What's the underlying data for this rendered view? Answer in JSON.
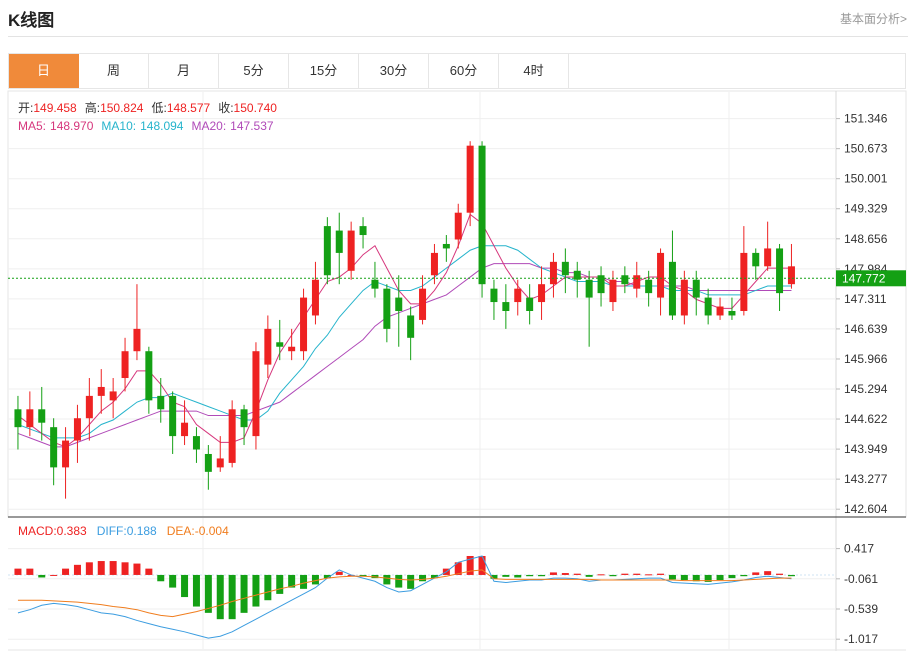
{
  "header": {
    "title": "K线图",
    "fundamental_link": "基本面分析>"
  },
  "tabs": [
    {
      "label": "日",
      "active": true
    },
    {
      "label": "周",
      "active": false
    },
    {
      "label": "月",
      "active": false
    },
    {
      "label": "5分",
      "active": false
    },
    {
      "label": "15分",
      "active": false
    },
    {
      "label": "30分",
      "active": false
    },
    {
      "label": "60分",
      "active": false
    },
    {
      "label": "4时",
      "active": false
    }
  ],
  "colors": {
    "up": "#ee2222",
    "down": "#14a014",
    "ma5": "#d6377d",
    "ma10": "#26b4cc",
    "ma20": "#b04ab8",
    "diff": "#3c9de0",
    "dea": "#f07d1e",
    "accent": "#f08a3a",
    "last_price": "#14a014"
  },
  "chart_data": [
    {
      "type": "candlestick",
      "ohlc_info": {
        "open_label": "开:",
        "open": "149.458",
        "high_label": "高:",
        "high": "150.824",
        "low_label": "低:",
        "low": "148.577",
        "close_label": "收:",
        "close": "150.740"
      },
      "ma_info": {
        "ma5_label": "MA5:",
        "ma5": "148.970",
        "ma10_label": "MA10:",
        "ma10": "148.094",
        "ma20_label": "MA20:",
        "ma20": "147.537"
      },
      "y_ticks": [
        "151.346",
        "150.673",
        "150.001",
        "149.329",
        "148.656",
        "147.984",
        "147.311",
        "146.639",
        "145.966",
        "145.294",
        "144.622",
        "143.949",
        "143.277",
        "142.604"
      ],
      "ylim": [
        142.604,
        151.346
      ],
      "last_price": "147.772",
      "candles": [
        [
          144.84,
          144.44,
          145.14,
          143.94
        ],
        [
          144.44,
          144.84,
          145.24,
          144.24
        ],
        [
          144.84,
          144.54,
          145.34,
          144.14
        ],
        [
          144.44,
          143.54,
          144.64,
          143.14
        ],
        [
          143.54,
          144.14,
          144.44,
          142.84
        ],
        [
          144.14,
          144.64,
          144.94,
          143.64
        ],
        [
          144.64,
          145.14,
          145.54,
          144.14
        ],
        [
          145.14,
          145.34,
          145.74,
          144.74
        ],
        [
          145.04,
          145.24,
          145.54,
          144.64
        ],
        [
          145.54,
          146.14,
          146.44,
          145.24
        ],
        [
          146.14,
          146.64,
          147.64,
          145.94
        ],
        [
          146.14,
          145.04,
          146.24,
          144.74
        ],
        [
          145.14,
          144.84,
          145.54,
          144.54
        ],
        [
          145.14,
          144.24,
          145.24,
          143.84
        ],
        [
          144.24,
          144.54,
          145.04,
          144.04
        ],
        [
          144.24,
          143.94,
          144.44,
          143.64
        ],
        [
          143.84,
          143.44,
          144.04,
          143.04
        ],
        [
          143.54,
          143.74,
          144.24,
          143.44
        ],
        [
          143.64,
          144.84,
          145.04,
          143.54
        ],
        [
          144.84,
          144.44,
          144.94,
          144.04
        ],
        [
          144.24,
          146.14,
          146.34,
          143.94
        ],
        [
          145.84,
          146.64,
          146.94,
          145.54
        ],
        [
          146.34,
          146.24,
          146.84,
          145.94
        ],
        [
          146.14,
          146.24,
          146.64,
          145.94
        ],
        [
          146.14,
          147.34,
          147.54,
          145.94
        ],
        [
          146.94,
          147.74,
          148.14,
          146.74
        ],
        [
          148.94,
          147.84,
          149.14,
          147.64
        ],
        [
          148.84,
          148.34,
          149.24,
          147.64
        ],
        [
          147.94,
          148.84,
          149.04,
          147.74
        ],
        [
          148.94,
          148.74,
          149.14,
          148.44
        ],
        [
          147.74,
          147.54,
          148.14,
          147.34
        ],
        [
          147.54,
          146.64,
          147.64,
          146.34
        ],
        [
          147.34,
          147.04,
          147.84,
          146.24
        ],
        [
          146.94,
          146.44,
          147.14,
          145.94
        ],
        [
          146.84,
          147.54,
          147.84,
          146.74
        ],
        [
          147.84,
          148.34,
          148.54,
          147.64
        ],
        [
          148.54,
          148.44,
          148.74,
          148.14
        ],
        [
          148.64,
          149.24,
          149.44,
          148.44
        ],
        [
          149.24,
          150.74,
          150.84,
          148.94
        ],
        [
          150.74,
          147.64,
          150.84,
          147.34
        ],
        [
          147.54,
          147.24,
          147.74,
          146.84
        ],
        [
          147.24,
          147.04,
          147.64,
          146.64
        ],
        [
          147.24,
          147.54,
          147.74,
          146.94
        ],
        [
          147.34,
          147.04,
          147.64,
          146.74
        ],
        [
          147.24,
          147.64,
          148.04,
          146.84
        ],
        [
          147.64,
          148.14,
          148.34,
          147.34
        ],
        [
          148.14,
          147.84,
          148.44,
          147.44
        ],
        [
          147.94,
          147.74,
          148.14,
          147.34
        ],
        [
          147.74,
          147.34,
          147.94,
          146.24
        ],
        [
          147.84,
          147.44,
          148.04,
          147.14
        ],
        [
          147.24,
          147.74,
          147.94,
          147.04
        ],
        [
          147.84,
          147.64,
          148.04,
          147.44
        ],
        [
          147.54,
          147.84,
          148.14,
          147.34
        ],
        [
          147.74,
          147.44,
          147.94,
          147.14
        ],
        [
          147.34,
          148.34,
          148.44,
          146.94
        ],
        [
          148.14,
          146.94,
          148.84,
          146.84
        ],
        [
          146.94,
          147.74,
          147.94,
          146.74
        ],
        [
          147.74,
          147.34,
          147.94,
          146.94
        ],
        [
          147.34,
          146.94,
          147.54,
          146.74
        ],
        [
          146.94,
          147.14,
          147.34,
          146.84
        ],
        [
          147.04,
          146.94,
          147.34,
          146.84
        ],
        [
          147.04,
          148.34,
          148.94,
          146.94
        ],
        [
          148.34,
          148.04,
          148.44,
          147.74
        ],
        [
          148.04,
          148.44,
          149.04,
          147.94
        ],
        [
          148.44,
          147.44,
          148.54,
          147.04
        ],
        [
          147.64,
          148.04,
          148.54,
          147.54
        ]
      ],
      "ma5": [
        144.7,
        144.5,
        144.3,
        144.1,
        144.0,
        144.2,
        144.5,
        144.8,
        145.0,
        145.3,
        145.7,
        145.7,
        145.4,
        145.0,
        144.9,
        144.5,
        144.3,
        144.1,
        144.1,
        144.2,
        144.8,
        145.5,
        146.1,
        146.5,
        146.9,
        147.3,
        147.7,
        147.8,
        148.0,
        148.3,
        148.5,
        148.0,
        147.5,
        147.2,
        147.2,
        147.5,
        147.9,
        148.5,
        149.2,
        149.0,
        148.5,
        148.0,
        147.6,
        147.3,
        147.4,
        147.6,
        147.8,
        147.8,
        147.8,
        147.8,
        147.6,
        147.6,
        147.7,
        147.8,
        147.8,
        147.6,
        147.5,
        147.3,
        147.2,
        147.1,
        147.1,
        147.4,
        147.7,
        148.0,
        148.0,
        148.0
      ],
      "ma10": [
        144.5,
        144.4,
        144.3,
        144.2,
        144.2,
        144.2,
        144.3,
        144.5,
        144.6,
        144.8,
        145.0,
        145.1,
        145.1,
        145.2,
        145.1,
        145.0,
        144.9,
        144.8,
        144.7,
        144.6,
        144.6,
        144.8,
        145.2,
        145.5,
        145.8,
        146.2,
        146.5,
        146.9,
        147.2,
        147.5,
        147.7,
        147.6,
        147.5,
        147.5,
        147.6,
        147.8,
        148.0,
        148.2,
        148.4,
        148.5,
        148.5,
        148.5,
        148.4,
        148.2,
        148.0,
        147.9,
        147.8,
        147.7,
        147.7,
        147.7,
        147.6,
        147.6,
        147.6,
        147.6,
        147.6,
        147.5,
        147.5,
        147.5,
        147.4,
        147.4,
        147.4,
        147.4,
        147.5,
        147.6,
        147.6,
        147.6
      ],
      "ma20": [
        144.3,
        144.2,
        144.1,
        144.0,
        144.0,
        144.1,
        144.2,
        144.3,
        144.4,
        144.5,
        144.6,
        144.7,
        144.8,
        144.8,
        144.8,
        144.8,
        144.7,
        144.7,
        144.7,
        144.7,
        144.8,
        144.9,
        145.0,
        145.2,
        145.4,
        145.6,
        145.8,
        146.0,
        146.2,
        146.4,
        146.7,
        146.9,
        147.0,
        147.1,
        147.2,
        147.3,
        147.4,
        147.6,
        147.8,
        148.0,
        148.1,
        148.1,
        148.1,
        148.1,
        148.0,
        148.0,
        147.9,
        147.9,
        147.8,
        147.8,
        147.7,
        147.7,
        147.6,
        147.6,
        147.6,
        147.6,
        147.6,
        147.5,
        147.5,
        147.5,
        147.5,
        147.5,
        147.5,
        147.5,
        147.5,
        147.5
      ]
    },
    {
      "type": "macd",
      "info": {
        "macd_label": "MACD:",
        "macd": "0.383",
        "diff_label": "DIFF:",
        "diff": "0.188",
        "dea_label": "DEA:",
        "dea": "-0.004"
      },
      "y_ticks": [
        "0.417",
        "-0.061",
        "-0.539",
        "-1.017"
      ],
      "ylim": [
        -1.017,
        0.417
      ],
      "hist": [
        0.1,
        0.1,
        -0.04,
        0.0,
        0.1,
        0.16,
        0.2,
        0.22,
        0.22,
        0.2,
        0.18,
        0.1,
        -0.1,
        -0.2,
        -0.35,
        -0.5,
        -0.6,
        -0.7,
        -0.7,
        -0.6,
        -0.5,
        -0.4,
        -0.3,
        -0.2,
        -0.22,
        -0.15,
        -0.05,
        0.05,
        0.0,
        -0.02,
        -0.05,
        -0.15,
        -0.2,
        -0.22,
        -0.1,
        -0.05,
        0.1,
        0.2,
        0.3,
        0.3,
        -0.06,
        -0.03,
        -0.04,
        -0.02,
        -0.02,
        0.04,
        0.03,
        0.02,
        -0.03,
        0.01,
        -0.02,
        0.02,
        0.02,
        0.01,
        0.02,
        -0.07,
        -0.08,
        -0.1,
        -0.11,
        -0.08,
        -0.05,
        -0.02,
        0.04,
        0.06,
        0.02,
        -0.02
      ],
      "diff_line": [
        -0.6,
        -0.55,
        -0.48,
        -0.45,
        -0.47,
        -0.5,
        -0.55,
        -0.6,
        -0.62,
        -0.66,
        -0.72,
        -0.77,
        -0.82,
        -0.86,
        -0.9,
        -0.95,
        -1.0,
        -0.97,
        -0.9,
        -0.8,
        -0.7,
        -0.6,
        -0.5,
        -0.4,
        -0.3,
        -0.2,
        -0.05,
        0.08,
        0.0,
        -0.05,
        -0.1,
        -0.2,
        -0.27,
        -0.25,
        -0.15,
        -0.05,
        0.05,
        0.2,
        0.25,
        0.3,
        -0.1,
        -0.12,
        -0.1,
        -0.08,
        -0.08,
        -0.05,
        -0.05,
        -0.06,
        -0.1,
        -0.08,
        -0.08,
        -0.07,
        -0.06,
        -0.05,
        -0.05,
        -0.12,
        -0.13,
        -0.14,
        -0.15,
        -0.13,
        -0.11,
        -0.08,
        -0.04,
        -0.02,
        -0.04,
        -0.06
      ],
      "dea_line": [
        -0.4,
        -0.4,
        -0.4,
        -0.41,
        -0.42,
        -0.43,
        -0.45,
        -0.47,
        -0.5,
        -0.52,
        -0.55,
        -0.6,
        -0.64,
        -0.66,
        -0.62,
        -0.58,
        -0.53,
        -0.48,
        -0.42,
        -0.37,
        -0.32,
        -0.27,
        -0.22,
        -0.18,
        -0.13,
        -0.09,
        -0.05,
        -0.03,
        -0.02,
        -0.02,
        -0.03,
        -0.05,
        -0.07,
        -0.08,
        -0.07,
        -0.05,
        -0.02,
        0.02,
        0.06,
        0.08,
        -0.06,
        -0.07,
        -0.07,
        -0.07,
        -0.07,
        -0.07,
        -0.07,
        -0.07,
        -0.07,
        -0.08,
        -0.08,
        -0.08,
        -0.08,
        -0.08,
        -0.08,
        -0.08,
        -0.09,
        -0.09,
        -0.09,
        -0.09,
        -0.09,
        -0.08,
        -0.07,
        -0.06,
        -0.05,
        -0.05
      ]
    }
  ]
}
